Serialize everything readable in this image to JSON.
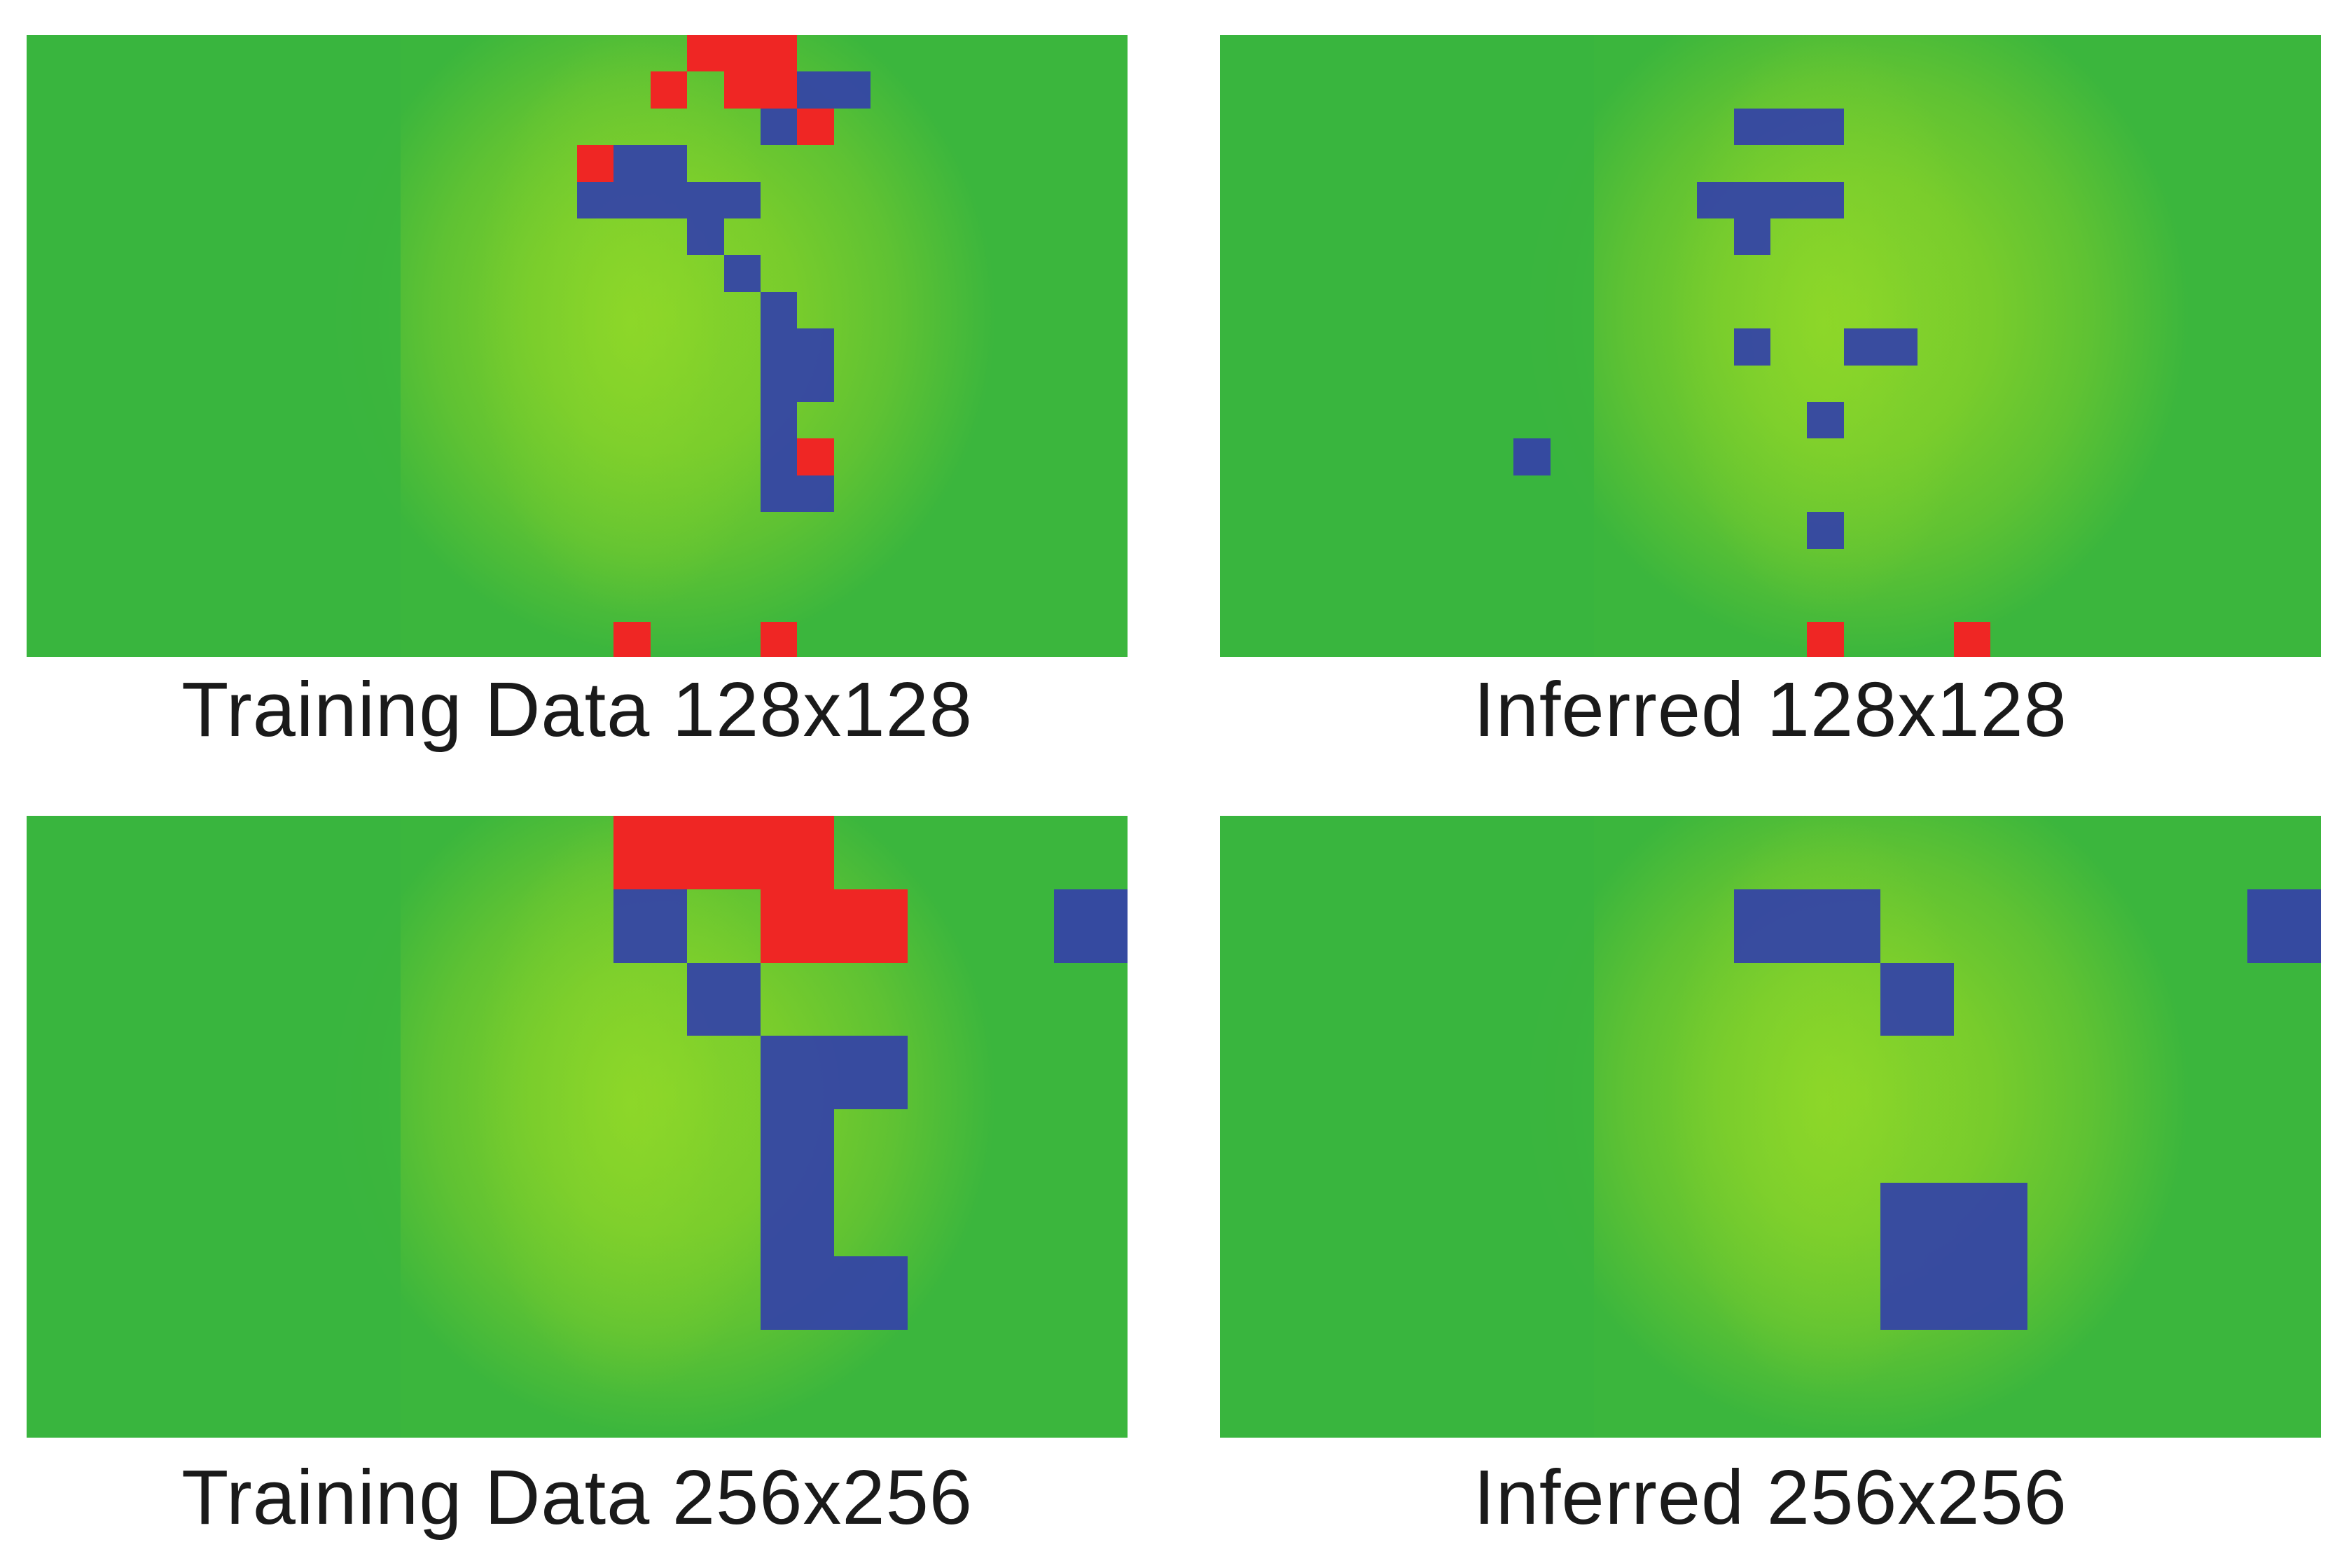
{
  "colors": {
    "background_green": "#3bb63d",
    "face_green": "#7fcf2b",
    "blue": "#3545a5",
    "red": "#ef2624"
  },
  "panels": [
    {
      "caption": "Training Data 128x128",
      "grid_cells": 30,
      "cells": [
        {
          "col": 18,
          "row": 0,
          "w": 3,
          "h": 1,
          "color": "red"
        },
        {
          "col": 17,
          "row": 1,
          "w": 1,
          "h": 1,
          "color": "red"
        },
        {
          "col": 19,
          "row": 1,
          "w": 2,
          "h": 1,
          "color": "red"
        },
        {
          "col": 21,
          "row": 1,
          "w": 2,
          "h": 1,
          "color": "blue"
        },
        {
          "col": 20,
          "row": 2,
          "w": 1,
          "h": 1,
          "color": "blue"
        },
        {
          "col": 21,
          "row": 2,
          "w": 1,
          "h": 1,
          "color": "red"
        },
        {
          "col": 15,
          "row": 3,
          "w": 1,
          "h": 1,
          "color": "red"
        },
        {
          "col": 16,
          "row": 3,
          "w": 2,
          "h": 1,
          "color": "blue"
        },
        {
          "col": 15,
          "row": 4,
          "w": 5,
          "h": 1,
          "color": "blue"
        },
        {
          "col": 18,
          "row": 5,
          "w": 1,
          "h": 1,
          "color": "blue"
        },
        {
          "col": 19,
          "row": 6,
          "w": 1,
          "h": 1,
          "color": "blue"
        },
        {
          "col": 20,
          "row": 7,
          "w": 1,
          "h": 1,
          "color": "blue"
        },
        {
          "col": 20,
          "row": 8,
          "w": 2,
          "h": 2,
          "color": "blue"
        },
        {
          "col": 20,
          "row": 10,
          "w": 1,
          "h": 1,
          "color": "blue"
        },
        {
          "col": 20,
          "row": 11,
          "w": 1,
          "h": 1,
          "color": "blue"
        },
        {
          "col": 21,
          "row": 11,
          "w": 1,
          "h": 1,
          "color": "red"
        },
        {
          "col": 20,
          "row": 12,
          "w": 2,
          "h": 1,
          "color": "blue"
        },
        {
          "col": 16,
          "row": 16,
          "w": 1,
          "h": 1,
          "color": "red"
        },
        {
          "col": 20,
          "row": 16,
          "w": 1,
          "h": 1,
          "color": "red"
        }
      ]
    },
    {
      "caption": "Inferred 128x128",
      "grid_cells": 30,
      "cells": [
        {
          "col": 14,
          "row": 2,
          "w": 3,
          "h": 1,
          "color": "blue"
        },
        {
          "col": 13,
          "row": 4,
          "w": 4,
          "h": 1,
          "color": "blue"
        },
        {
          "col": 14,
          "row": 5,
          "w": 1,
          "h": 1,
          "color": "blue"
        },
        {
          "col": 14,
          "row": 8,
          "w": 1,
          "h": 1,
          "color": "blue"
        },
        {
          "col": 17,
          "row": 8,
          "w": 2,
          "h": 1,
          "color": "blue"
        },
        {
          "col": 8,
          "row": 11,
          "w": 1,
          "h": 1,
          "color": "blue"
        },
        {
          "col": 16,
          "row": 10,
          "w": 1,
          "h": 1,
          "color": "blue"
        },
        {
          "col": 16,
          "row": 13,
          "w": 1,
          "h": 1,
          "color": "blue"
        },
        {
          "col": 16,
          "row": 16,
          "w": 1,
          "h": 1,
          "color": "red"
        },
        {
          "col": 20,
          "row": 16,
          "w": 1,
          "h": 1,
          "color": "red"
        }
      ]
    },
    {
      "caption": "Training Data 256x256",
      "grid_cells": 15,
      "cells": [
        {
          "col": 8,
          "row": 0,
          "w": 3,
          "h": 1,
          "color": "red"
        },
        {
          "col": 8,
          "row": 1,
          "w": 1,
          "h": 1,
          "color": "blue"
        },
        {
          "col": 10,
          "row": 1,
          "w": 2,
          "h": 1,
          "color": "red"
        },
        {
          "col": 14,
          "row": 1,
          "w": 1,
          "h": 1,
          "color": "blue"
        },
        {
          "col": 9,
          "row": 2,
          "w": 1,
          "h": 1,
          "color": "blue"
        },
        {
          "col": 10,
          "row": 3,
          "w": 2,
          "h": 1,
          "color": "blue"
        },
        {
          "col": 10,
          "row": 4,
          "w": 1,
          "h": 2,
          "color": "blue"
        },
        {
          "col": 10,
          "row": 6,
          "w": 2,
          "h": 1,
          "color": "blue"
        }
      ]
    },
    {
      "caption": "Inferred 256x256",
      "grid_cells": 15,
      "cells": [
        {
          "col": 7,
          "row": 1,
          "w": 2,
          "h": 1,
          "color": "blue"
        },
        {
          "col": 14,
          "row": 1,
          "w": 1,
          "h": 1,
          "color": "blue"
        },
        {
          "col": 9,
          "row": 2,
          "w": 1,
          "h": 1,
          "color": "blue"
        },
        {
          "col": 9,
          "row": 5,
          "w": 2,
          "h": 2,
          "color": "blue"
        }
      ]
    }
  ]
}
